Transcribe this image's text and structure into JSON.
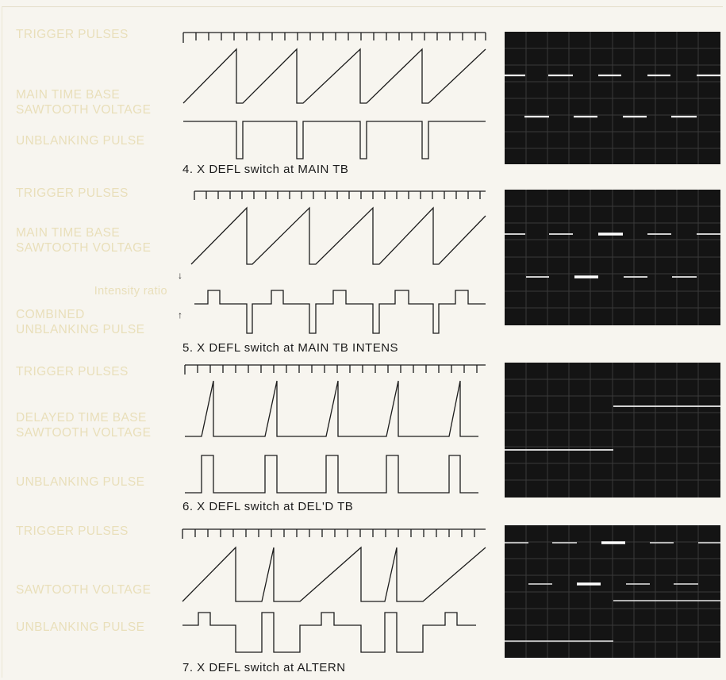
{
  "panels": [
    {
      "labels": {
        "trigger": "TRIGGER PULSES",
        "sawtooth_1": "MAIN TIME BASE",
        "sawtooth_2": "SAWTOOTH VOLTAGE",
        "unblank": "UNBLANKING PULSE"
      },
      "caption": "4.  X DEFL switch at MAIN TB"
    },
    {
      "labels": {
        "trigger": "TRIGGER PULSES",
        "sawtooth_1": "MAIN TIME BASE",
        "sawtooth_2": "SAWTOOTH VOLTAGE",
        "ratio": "Intensity ratio",
        "unblank_1": "COMBINED",
        "unblank_2": "UNBLANKING PULSE"
      },
      "caption": "5.  X DEFL switch at MAIN TB INTENS"
    },
    {
      "labels": {
        "trigger": "TRIGGER PULSES",
        "sawtooth_1": "DELAYED TIME BASE",
        "sawtooth_2": "SAWTOOTH VOLTAGE",
        "unblank": "UNBLANKING PULSE"
      },
      "caption": "6.  X DEFL switch at DEL'D TB"
    },
    {
      "labels": {
        "trigger": "TRIGGER PULSES",
        "sawtooth": "SAWTOOTH VOLTAGE",
        "unblank": "UNBLANKING PULSE"
      },
      "caption": "7.  X DEFL switch at ALTERN"
    }
  ],
  "colors": {
    "label": "#e9dfba",
    "trace": "#1c1c1c",
    "scope_bg": "#141414",
    "scope_trace": "#f2f2f2"
  }
}
